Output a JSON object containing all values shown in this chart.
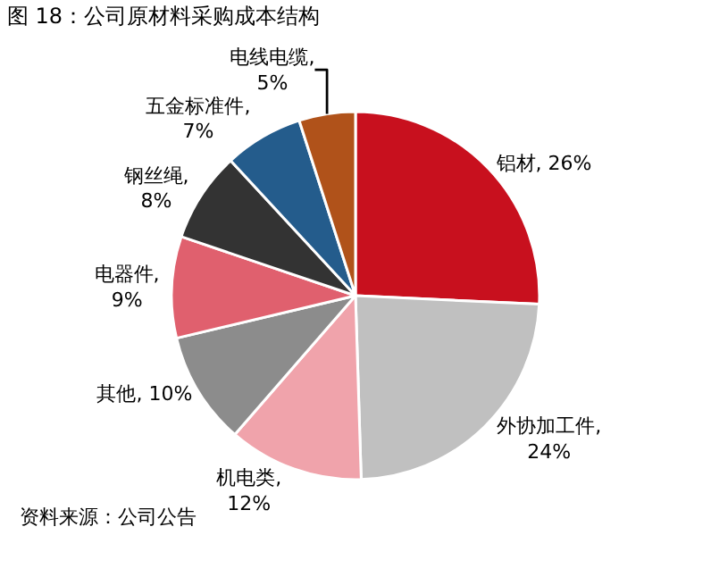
{
  "chart_data": {
    "type": "pie",
    "title": "图 18：公司原材料采购成本结构",
    "categories": [
      "铝材",
      "外协加工件",
      "机电类",
      "其他",
      "电器件",
      "钢丝绳",
      "五金标准件",
      "电线电缆"
    ],
    "values": [
      26,
      24,
      12,
      10,
      9,
      8,
      7,
      5
    ],
    "colors": [
      "#c8101e",
      "#c0c0c0",
      "#f0a3ab",
      "#8c8c8c",
      "#e0606e",
      "#333333",
      "#245c8c",
      "#b0521a"
    ],
    "value_labels": [
      ", 26%",
      ",\n24%",
      ",\n12%",
      ", 10%",
      ",\n9%",
      ",\n8%",
      ",\n7%",
      ",\n5%"
    ],
    "legend": false,
    "annotations": [
      "资料来源：公司公告"
    ]
  }
}
